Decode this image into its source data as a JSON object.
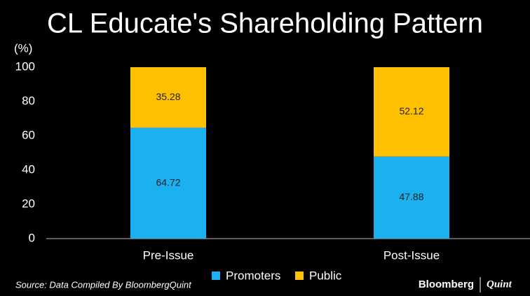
{
  "chart_data": {
    "type": "stacked_bar",
    "title": "CL Educate's Shareholding Pattern",
    "y_label": "(%)",
    "categories": [
      "Pre-Issue",
      "Post-Issue"
    ],
    "series": [
      {
        "name": "Promoters",
        "color": "#1cb0f0",
        "values": [
          64.72,
          47.88
        ]
      },
      {
        "name": "Public",
        "color": "#fec000",
        "values": [
          35.28,
          52.12
        ]
      }
    ],
    "ylim": [
      0,
      100
    ],
    "yticks": [
      0,
      20,
      40,
      60,
      80,
      100
    ],
    "source": "Source: Data Compiled By BloombergQuint",
    "brand": [
      "Bloomberg",
      "Quint"
    ]
  }
}
